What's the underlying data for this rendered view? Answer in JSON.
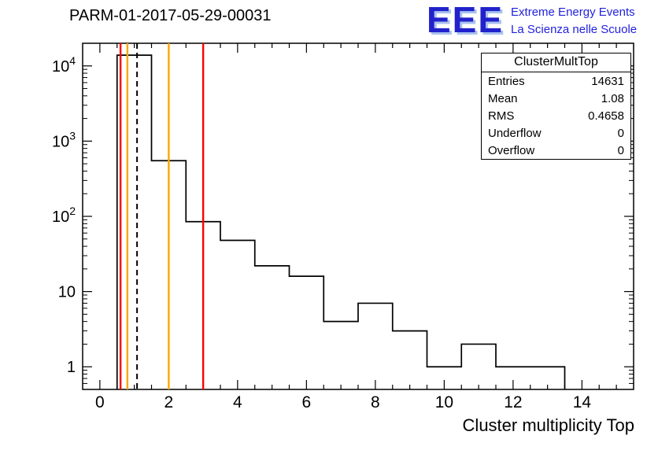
{
  "header": {
    "title": "PARM-01-2017-05-29-00031",
    "logo": {
      "acronym": "EEE",
      "line1": "Extreme Energy Events",
      "line2": "La Scienza nelle Scuole",
      "color": "#2222cc",
      "shadow_color": "#a9c3ee"
    }
  },
  "stats": {
    "title": "ClusterMultTop",
    "rows": [
      {
        "label": "Entries",
        "value": "14631"
      },
      {
        "label": "Mean",
        "value": "1.08"
      },
      {
        "label": "RMS",
        "value": "0.4658"
      },
      {
        "label": "Underflow",
        "value": "0"
      },
      {
        "label": "Overflow",
        "value": "0"
      }
    ]
  },
  "chart_data": {
    "type": "bar",
    "subtype": "step-histogram",
    "title": "PARM-01-2017-05-29-00031",
    "xlabel": "Cluster multiplicity Top",
    "ylabel": "",
    "yscale": "log",
    "grid": false,
    "legend": false,
    "xlim": [
      -0.5,
      15.5
    ],
    "ylim": [
      0.5,
      20000
    ],
    "bin_width": 1,
    "bin_edges": [
      0.5,
      1.5,
      2.5,
      3.5,
      4.5,
      5.5,
      6.5,
      7.5,
      8.5,
      9.5,
      10.5,
      11.5,
      12.5,
      13.5
    ],
    "counts": [
      13900,
      550,
      85,
      48,
      22,
      16,
      4,
      7,
      3,
      1,
      2,
      1,
      1
    ],
    "x_major_ticks": [
      0,
      2,
      4,
      6,
      8,
      10,
      12,
      14
    ],
    "x_minor_step": 0.5,
    "y_ticks": [
      {
        "value": 1,
        "base": "1",
        "exp": ""
      },
      {
        "value": 10,
        "base": "10",
        "exp": ""
      },
      {
        "value": 100,
        "base": "10",
        "exp": "2"
      },
      {
        "value": 1000,
        "base": "10",
        "exp": "3"
      },
      {
        "value": 10000,
        "base": "10",
        "exp": "4"
      }
    ],
    "line_color": "#000000",
    "marker_lines": [
      {
        "x": 0.6,
        "color": "#ff0000",
        "style": "solid",
        "name": "red-threshold-low"
      },
      {
        "x": 0.8,
        "color": "#ffa500",
        "style": "solid",
        "name": "orange-threshold-low"
      },
      {
        "x": 1.08,
        "color": "#000000",
        "style": "dashed",
        "name": "mean-dashed"
      },
      {
        "x": 2.0,
        "color": "#ffa500",
        "style": "solid",
        "name": "orange-threshold-high"
      },
      {
        "x": 3.0,
        "color": "#ff0000",
        "style": "solid",
        "name": "red-threshold-high"
      }
    ]
  }
}
